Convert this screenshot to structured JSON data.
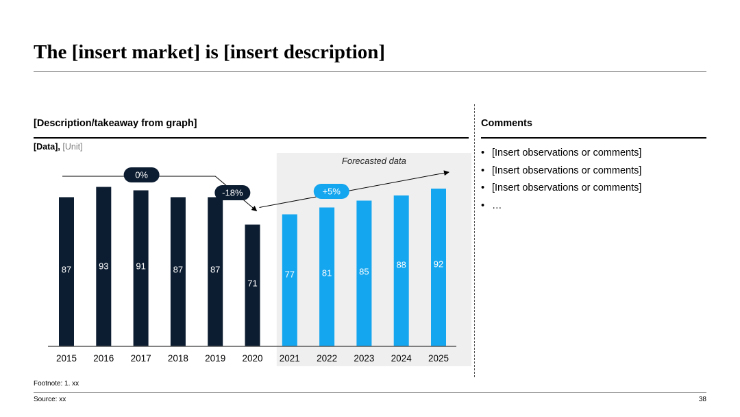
{
  "slide": {
    "title": "The [insert market] is [insert description]",
    "page_number": "38"
  },
  "left_panel": {
    "heading": "[Description/takeaway from graph]",
    "data_label": "[Data],",
    "unit_label": "[Unit]"
  },
  "right_panel": {
    "heading": "Comments",
    "bullet_symbol": "•",
    "items": [
      "[Insert observations or comments]",
      "[Insert observations or comments]",
      "[Insert observations or comments]",
      "…"
    ]
  },
  "footer": {
    "footnote": "Footnote: 1. xx",
    "source": "Source: xx"
  },
  "colors": {
    "historical": "#0d1d31",
    "forecast": "#14a6ef",
    "forecast_bg": "#efefef",
    "rule": "#8c8c8c"
  },
  "chart_data": {
    "type": "bar",
    "categories": [
      "2015",
      "2016",
      "2017",
      "2018",
      "2019",
      "2020",
      "2021",
      "2022",
      "2023",
      "2024",
      "2025"
    ],
    "values": [
      87,
      93,
      91,
      87,
      87,
      71,
      77,
      81,
      85,
      88,
      92
    ],
    "forecast_from_index": 6,
    "forecast_label": "Forecasted data",
    "annotations": [
      {
        "text": "0%",
        "from": "2015",
        "to": "2019",
        "color": "#0d1d31"
      },
      {
        "text": "-18%",
        "from": "2019",
        "to": "2020",
        "color": "#0d1d31"
      },
      {
        "text": "+5%",
        "from": "2020",
        "to": "2025",
        "color": "#14a6ef"
      }
    ],
    "ylim": [
      0,
      100
    ],
    "grid": false,
    "legend": "none"
  }
}
